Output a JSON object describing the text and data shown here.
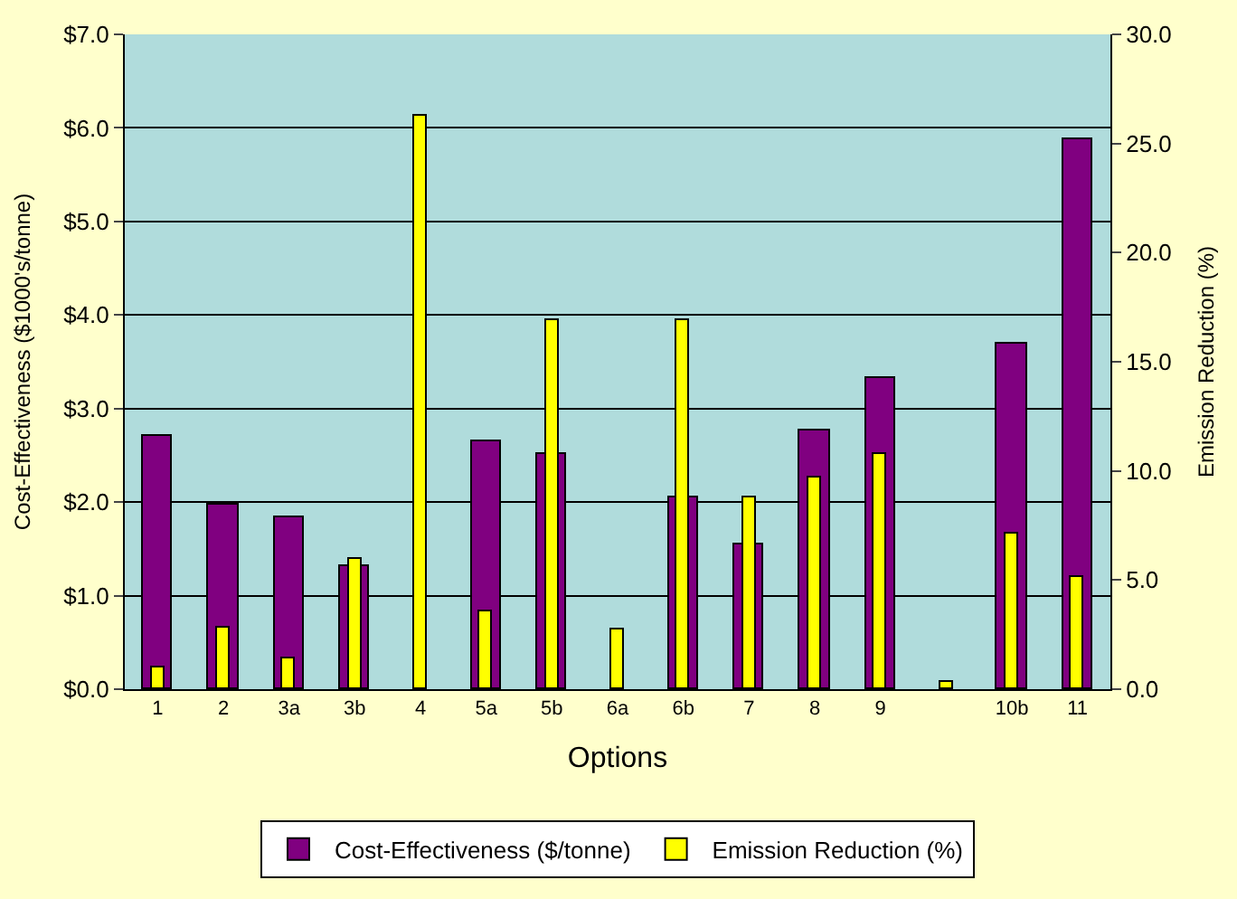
{
  "chart_data": {
    "type": "bar",
    "xlabel": "Options",
    "ylabel": "Cost-Effectiveness ($1000's/tonne)",
    "y2label": "Emission Reduction (%)",
    "categories": [
      "1",
      "2",
      "3a",
      "3b",
      "4",
      "5a",
      "5b",
      "6a",
      "6b",
      "7",
      "8",
      "9",
      null,
      "10b",
      "11"
    ],
    "series": [
      {
        "name": "Cost-Effectiveness ($/tonne)",
        "color": "#800080",
        "values": [
          2.7,
          1.98,
          1.83,
          1.32,
          null,
          2.65,
          2.52,
          null,
          2.05,
          1.55,
          2.76,
          3.32,
          null,
          3.69,
          5.88
        ]
      },
      {
        "name": "Emission Reduction (%)",
        "color": "#ffff00",
        "axis": "y2",
        "values": [
          1.0,
          2.8,
          1.4,
          6.0,
          26.3,
          3.6,
          16.9,
          2.7,
          16.9,
          8.8,
          9.7,
          10.8,
          0.3,
          7.1,
          5.1
        ]
      }
    ],
    "ylim": [
      0,
      7
    ],
    "yticks": [
      {
        "value": 0,
        "label": "$0.0"
      },
      {
        "value": 1,
        "label": "$1.0"
      },
      {
        "value": 2,
        "label": "$2.0"
      },
      {
        "value": 3,
        "label": "$3.0"
      },
      {
        "value": 4,
        "label": "$4.0"
      },
      {
        "value": 5,
        "label": "$5.0"
      },
      {
        "value": 6,
        "label": "$6.0"
      },
      {
        "value": 7,
        "label": "$7.0"
      }
    ],
    "y2lim": [
      0,
      30
    ],
    "y2ticks": [
      {
        "value": 0,
        "label": "0.0"
      },
      {
        "value": 5,
        "label": "5.0"
      },
      {
        "value": 10,
        "label": "10.0"
      },
      {
        "value": 15,
        "label": "15.0"
      },
      {
        "value": 20,
        "label": "20.0"
      },
      {
        "value": 25,
        "label": "25.0"
      },
      {
        "value": 30,
        "label": "30.0"
      }
    ],
    "grid": "y",
    "legend": "bottom"
  }
}
